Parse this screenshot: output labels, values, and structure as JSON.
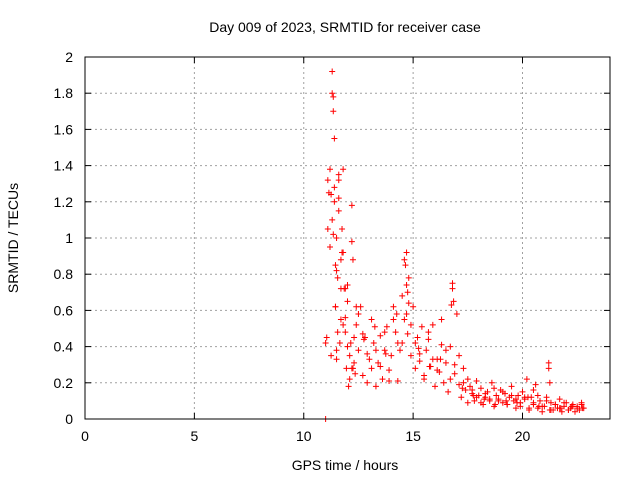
{
  "chart_data": {
    "type": "scatter",
    "title": "Day 009 of 2023, SRMTID for receiver case",
    "xlabel": "GPS time / hours",
    "ylabel": "SRMTID / TECUs",
    "xlim": [
      0,
      24
    ],
    "ylim": [
      0,
      2
    ],
    "xticks": [
      0,
      5,
      10,
      15,
      20
    ],
    "yticks": [
      0,
      0.2,
      0.4,
      0.6,
      0.8,
      1,
      1.2,
      1.4,
      1.6,
      1.8,
      2
    ],
    "grid": true,
    "marker": "+",
    "marker_color": "#ff0000",
    "series": [
      {
        "name": "SRMTID",
        "x": [
          11.0,
          11.05,
          11.1,
          11.15,
          11.2,
          11.25,
          11.3,
          11.35,
          11.4,
          11.45,
          11.5,
          11.55,
          11.6,
          11.65,
          11.7,
          11.75,
          11.8,
          11.85,
          11.9,
          11.95,
          12.0,
          12.05,
          12.1,
          12.15,
          12.2,
          12.25,
          12.3,
          12.35,
          12.4,
          12.5,
          12.6,
          12.7,
          12.8,
          12.9,
          13.0,
          13.1,
          13.2,
          13.3,
          13.4,
          13.5,
          13.6,
          13.7,
          13.8,
          13.9,
          14.0,
          14.1,
          14.2,
          14.3,
          14.4,
          14.5,
          14.6,
          14.7,
          14.8,
          14.9,
          15.0,
          15.1,
          15.2,
          15.3,
          15.4,
          15.5,
          15.6,
          15.7,
          15.8,
          15.9,
          16.0,
          16.1,
          16.2,
          16.3,
          16.4,
          16.5,
          16.6,
          16.7,
          16.8,
          16.9,
          17.0,
          17.1,
          17.2,
          17.3,
          17.4,
          17.5,
          17.6,
          17.7,
          17.8,
          17.9,
          18.0,
          18.1,
          18.2,
          18.3,
          18.4,
          18.5,
          18.6,
          18.7,
          18.8,
          18.9,
          19.0,
          19.1,
          19.2,
          19.3,
          19.4,
          19.5,
          19.6,
          19.7,
          19.8,
          19.9,
          20.0,
          20.1,
          20.2,
          20.3,
          20.4,
          20.5,
          20.6,
          20.7,
          20.8,
          20.9,
          21.0,
          21.1,
          21.2,
          21.3,
          21.4,
          21.5,
          21.6,
          21.7,
          21.8,
          21.9,
          22.0,
          22.1,
          22.2,
          22.3,
          22.4,
          22.5,
          22.6,
          22.7,
          22.8,
          11.2,
          11.3,
          11.35,
          11.4,
          11.45,
          11.5,
          11.6,
          11.7,
          11.8,
          11.9,
          12.0,
          12.1,
          12.2,
          12.3,
          12.5,
          12.7,
          12.9,
          13.1,
          13.3,
          13.5,
          13.7,
          13.9,
          14.1,
          14.3,
          14.5,
          14.7,
          14.9,
          15.1,
          15.3,
          15.5,
          15.7,
          15.9,
          16.1,
          16.3,
          16.5,
          16.7,
          16.9,
          17.1,
          17.3,
          17.5,
          17.7,
          17.9,
          18.1,
          18.3,
          18.5,
          18.7,
          18.9,
          19.1,
          19.3,
          19.5,
          19.7,
          19.9,
          20.1,
          20.3,
          20.5,
          20.7,
          20.9,
          21.1,
          21.3,
          21.5,
          21.7,
          21.9,
          22.1,
          22.3,
          22.5,
          22.7,
          11.3,
          11.35,
          11.4,
          11.45,
          11.5,
          11.55,
          11.6,
          11.7,
          11.8,
          11.9,
          12.0,
          12.2,
          12.4,
          14.6,
          14.65,
          14.7,
          14.75,
          14.8,
          16.8,
          16.85,
          20.5,
          21.2,
          21.25,
          11.25,
          11.5,
          11.75,
          12.25,
          12.75,
          13.25,
          13.75,
          14.25,
          14.75,
          15.25,
          15.75,
          16.25,
          16.75,
          17.25,
          17.75,
          18.25,
          18.75,
          19.25,
          19.75,
          20.25,
          20.75,
          21.25,
          21.75,
          22.25,
          22.75,
          11.1,
          11.6,
          11.0
        ],
        "y": [
          0.0,
          0.45,
          1.32,
          1.25,
          0.95,
          0.35,
          1.92,
          1.78,
          1.55,
          0.62,
          1.0,
          0.78,
          1.32,
          0.42,
          0.55,
          1.05,
          1.38,
          0.72,
          0.48,
          0.28,
          0.65,
          0.18,
          0.35,
          0.42,
          1.18,
          0.88,
          0.31,
          0.25,
          0.52,
          0.38,
          0.62,
          0.24,
          0.45,
          0.36,
          0.33,
          0.28,
          0.42,
          0.18,
          0.31,
          0.46,
          0.22,
          0.38,
          0.51,
          0.27,
          0.35,
          0.62,
          0.48,
          0.21,
          0.38,
          0.42,
          0.55,
          0.92,
          0.78,
          0.35,
          0.62,
          0.28,
          0.45,
          0.32,
          0.51,
          0.24,
          0.38,
          0.44,
          0.29,
          0.52,
          0.18,
          0.33,
          0.26,
          0.41,
          0.2,
          0.31,
          0.15,
          0.22,
          0.72,
          0.3,
          0.58,
          0.35,
          0.12,
          0.2,
          0.16,
          0.09,
          0.18,
          0.14,
          0.1,
          0.21,
          0.13,
          0.17,
          0.08,
          0.12,
          0.15,
          0.1,
          0.2,
          0.07,
          0.13,
          0.11,
          0.16,
          0.09,
          0.14,
          0.08,
          0.12,
          0.18,
          0.1,
          0.06,
          0.13,
          0.09,
          0.15,
          0.11,
          0.22,
          0.05,
          0.12,
          0.08,
          0.19,
          0.06,
          0.1,
          0.04,
          0.07,
          0.12,
          0.28,
          0.09,
          0.05,
          0.08,
          0.06,
          0.11,
          0.04,
          0.07,
          0.09,
          0.05,
          0.06,
          0.08,
          0.04,
          0.07,
          0.05,
          0.09,
          0.06,
          1.38,
          1.8,
          1.7,
          1.28,
          0.62,
          0.82,
          1.15,
          0.72,
          0.92,
          0.56,
          0.74,
          0.22,
          0.98,
          0.45,
          0.58,
          0.47,
          0.2,
          0.55,
          0.38,
          0.29,
          0.48,
          0.21,
          0.55,
          0.42,
          0.68,
          0.58,
          0.52,
          0.42,
          0.36,
          0.22,
          0.48,
          0.33,
          0.27,
          0.55,
          0.38,
          0.4,
          0.25,
          0.19,
          0.28,
          0.22,
          0.16,
          0.12,
          0.09,
          0.14,
          0.11,
          0.17,
          0.1,
          0.15,
          0.08,
          0.13,
          0.11,
          0.07,
          0.12,
          0.06,
          0.09,
          0.13,
          0.07,
          0.1,
          0.05,
          0.08,
          0.06,
          0.09,
          0.05,
          0.07,
          0.06,
          0.08,
          1.1,
          1.02,
          1.2,
          0.85,
          0.38,
          0.48,
          1.22,
          0.88,
          0.52,
          0.72,
          0.4,
          0.28,
          0.62,
          0.88,
          0.85,
          0.74,
          0.7,
          0.64,
          0.75,
          0.65,
          0.16,
          0.31,
          0.2,
          1.24,
          0.33,
          0.92,
          0.28,
          0.44,
          0.51,
          0.36,
          0.58,
          0.47,
          0.39,
          0.29,
          0.33,
          0.63,
          0.17,
          0.13,
          0.11,
          0.08,
          0.1,
          0.09,
          0.12,
          0.07,
          0.05,
          0.06,
          0.07,
          0.06,
          1.05,
          1.35,
          0.42
        ]
      }
    ]
  }
}
